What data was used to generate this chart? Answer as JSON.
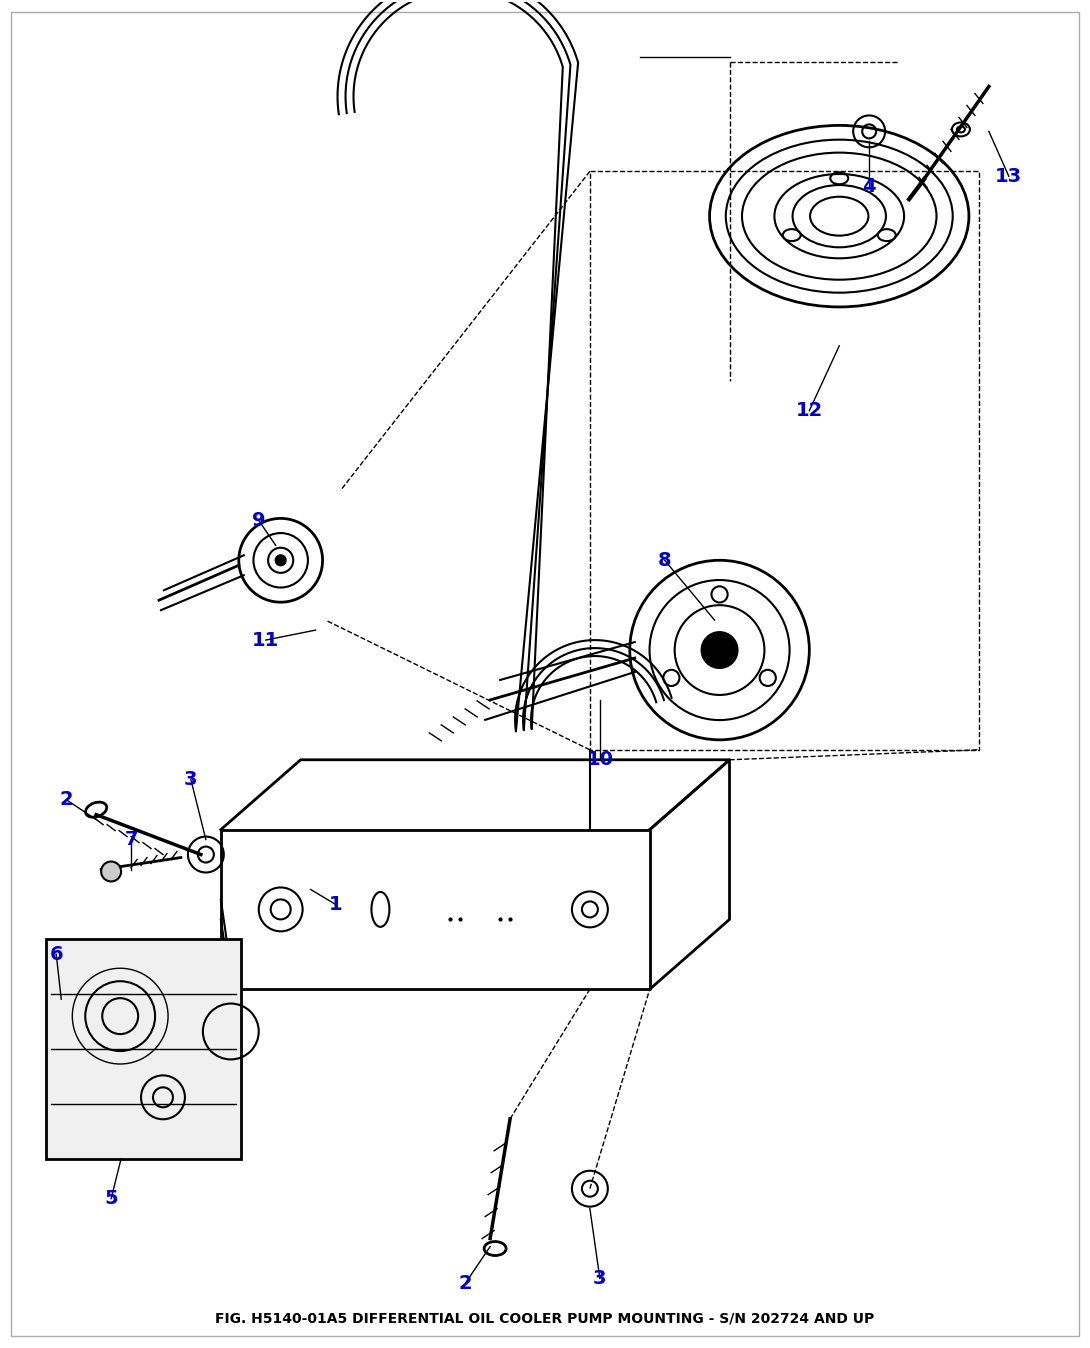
{
  "title": "FIG. H5140-01A5 DIFFERENTIAL OIL COOLER PUMP MOUNTING - S/N 202724 AND UP",
  "background_color": "#ffffff",
  "line_color": "#000000",
  "label_color": "#0000cc",
  "label_fontsize": 14,
  "title_fontsize": 10,
  "fig_width": 10.9,
  "fig_height": 13.48,
  "dpi": 100
}
